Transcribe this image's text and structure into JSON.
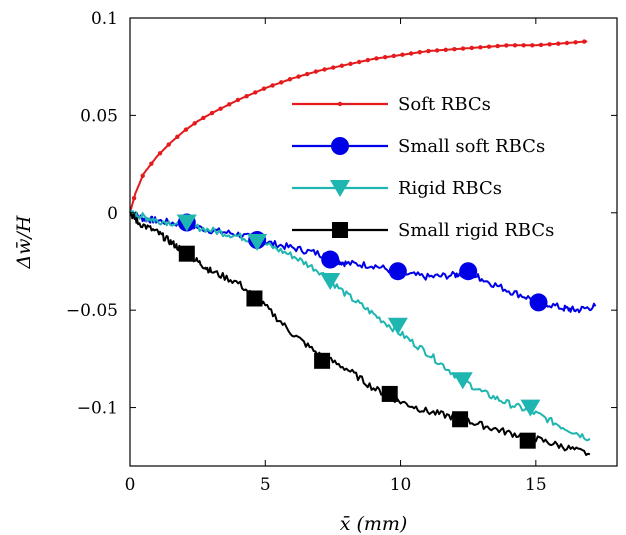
{
  "chart_data": {
    "type": "line",
    "title": "",
    "xlabel": "x̄ (mm)",
    "ylabel": "Δw̄/H",
    "xlim": [
      0,
      18
    ],
    "ylim": [
      -0.13,
      0.1
    ],
    "x_ticks": [
      0,
      5,
      10,
      15
    ],
    "x_tick_labels": [
      "0",
      "5",
      "10",
      "15"
    ],
    "y_ticks": [
      0.1,
      0.05,
      0,
      -0.05,
      -0.1
    ],
    "y_tick_labels": [
      "0.1",
      "0.05",
      "0",
      "−0.05",
      "−0.1"
    ],
    "grid": false,
    "legend_position": "right",
    "series": [
      {
        "name": "Soft RBCs",
        "color": "#e41a1c",
        "marker": "dot",
        "x": [
          0,
          0.2,
          0.5,
          1,
          1.5,
          2,
          2.5,
          3,
          4,
          5,
          6,
          7,
          8,
          9,
          10,
          11,
          12,
          13,
          14,
          15,
          16,
          16.9
        ],
        "y": [
          0,
          0.01,
          0.02,
          0.029,
          0.036,
          0.042,
          0.047,
          0.051,
          0.058,
          0.064,
          0.069,
          0.073,
          0.076,
          0.079,
          0.081,
          0.083,
          0.084,
          0.085,
          0.086,
          0.086,
          0.087,
          0.088
        ]
      },
      {
        "name": "Small soft RBCs",
        "color": "#0000e6",
        "marker": "circle",
        "x": [
          0,
          0.5,
          1,
          2,
          3,
          4,
          5,
          6,
          7,
          7.5,
          8,
          9,
          10,
          11,
          12,
          12.5,
          13,
          14,
          15,
          16,
          16.5,
          17.2
        ],
        "y": [
          0,
          -0.003,
          -0.004,
          -0.006,
          -0.009,
          -0.011,
          -0.015,
          -0.018,
          -0.021,
          -0.024,
          -0.026,
          -0.027,
          -0.031,
          -0.033,
          -0.032,
          -0.03,
          -0.034,
          -0.04,
          -0.045,
          -0.049,
          -0.05,
          -0.048
        ],
        "marker_x": [
          2.1,
          4.7,
          7.4,
          9.9,
          12.5,
          15.1
        ],
        "marker_y": [
          -0.005,
          -0.014,
          -0.024,
          -0.03,
          -0.03,
          -0.046
        ]
      },
      {
        "name": "Rigid RBCs",
        "color": "#1fb5b0",
        "marker": "triangle-down",
        "x": [
          0,
          0.5,
          1,
          2,
          3,
          4,
          5,
          6,
          7,
          8,
          9,
          10,
          11,
          12,
          13,
          14,
          15,
          16,
          17
        ],
        "y": [
          0,
          -0.002,
          -0.004,
          -0.006,
          -0.009,
          -0.012,
          -0.016,
          -0.022,
          -0.03,
          -0.042,
          -0.052,
          -0.062,
          -0.072,
          -0.083,
          -0.092,
          -0.098,
          -0.103,
          -0.11,
          -0.116
        ],
        "marker_x": [
          2.1,
          4.7,
          7.4,
          9.9,
          12.3,
          14.8
        ],
        "marker_y": [
          -0.005,
          -0.015,
          -0.035,
          -0.058,
          -0.086,
          -0.1
        ]
      },
      {
        "name": "Small rigid RBCs",
        "color": "#000000",
        "marker": "square",
        "x": [
          0,
          0.3,
          1,
          1.5,
          2,
          2.5,
          3,
          4,
          5,
          6,
          7,
          8,
          9,
          10,
          11,
          12,
          13,
          14,
          15,
          16,
          17
        ],
        "y": [
          0,
          -0.005,
          -0.01,
          -0.015,
          -0.02,
          -0.025,
          -0.03,
          -0.036,
          -0.048,
          -0.062,
          -0.073,
          -0.08,
          -0.09,
          -0.097,
          -0.102,
          -0.105,
          -0.109,
          -0.113,
          -0.116,
          -0.12,
          -0.124
        ],
        "marker_x": [
          2.1,
          4.6,
          7.1,
          9.6,
          12.2,
          14.7
        ],
        "marker_y": [
          -0.021,
          -0.044,
          -0.076,
          -0.093,
          -0.106,
          -0.117
        ]
      }
    ]
  }
}
